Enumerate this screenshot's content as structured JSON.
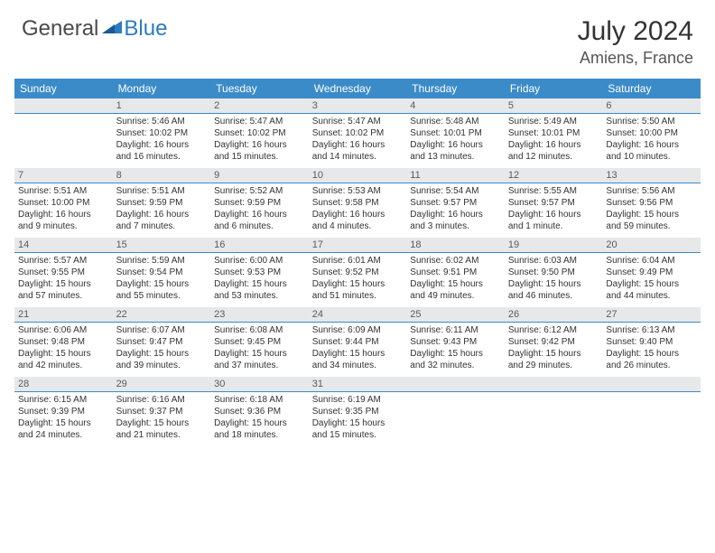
{
  "logo": {
    "general": "General",
    "blue": "Blue"
  },
  "title": "July 2024",
  "location": "Amiens, France",
  "colors": {
    "header_bg": "#3b8bc9",
    "header_text": "#ffffff",
    "date_bar_bg": "#e7e8e9",
    "date_bar_border": "#3b8bc9",
    "body_text": "#333333",
    "logo_general": "#4a4a4a",
    "logo_blue": "#2d7bc0"
  },
  "daysOfWeek": [
    "Sunday",
    "Monday",
    "Tuesday",
    "Wednesday",
    "Thursday",
    "Friday",
    "Saturday"
  ],
  "weeks": [
    {
      "dates": [
        "",
        "1",
        "2",
        "3",
        "4",
        "5",
        "6"
      ],
      "cells": [
        null,
        {
          "sunrise": "Sunrise: 5:46 AM",
          "sunset": "Sunset: 10:02 PM",
          "d1": "Daylight: 16 hours",
          "d2": "and 16 minutes."
        },
        {
          "sunrise": "Sunrise: 5:47 AM",
          "sunset": "Sunset: 10:02 PM",
          "d1": "Daylight: 16 hours",
          "d2": "and 15 minutes."
        },
        {
          "sunrise": "Sunrise: 5:47 AM",
          "sunset": "Sunset: 10:02 PM",
          "d1": "Daylight: 16 hours",
          "d2": "and 14 minutes."
        },
        {
          "sunrise": "Sunrise: 5:48 AM",
          "sunset": "Sunset: 10:01 PM",
          "d1": "Daylight: 16 hours",
          "d2": "and 13 minutes."
        },
        {
          "sunrise": "Sunrise: 5:49 AM",
          "sunset": "Sunset: 10:01 PM",
          "d1": "Daylight: 16 hours",
          "d2": "and 12 minutes."
        },
        {
          "sunrise": "Sunrise: 5:50 AM",
          "sunset": "Sunset: 10:00 PM",
          "d1": "Daylight: 16 hours",
          "d2": "and 10 minutes."
        }
      ]
    },
    {
      "dates": [
        "7",
        "8",
        "9",
        "10",
        "11",
        "12",
        "13"
      ],
      "cells": [
        {
          "sunrise": "Sunrise: 5:51 AM",
          "sunset": "Sunset: 10:00 PM",
          "d1": "Daylight: 16 hours",
          "d2": "and 9 minutes."
        },
        {
          "sunrise": "Sunrise: 5:51 AM",
          "sunset": "Sunset: 9:59 PM",
          "d1": "Daylight: 16 hours",
          "d2": "and 7 minutes."
        },
        {
          "sunrise": "Sunrise: 5:52 AM",
          "sunset": "Sunset: 9:59 PM",
          "d1": "Daylight: 16 hours",
          "d2": "and 6 minutes."
        },
        {
          "sunrise": "Sunrise: 5:53 AM",
          "sunset": "Sunset: 9:58 PM",
          "d1": "Daylight: 16 hours",
          "d2": "and 4 minutes."
        },
        {
          "sunrise": "Sunrise: 5:54 AM",
          "sunset": "Sunset: 9:57 PM",
          "d1": "Daylight: 16 hours",
          "d2": "and 3 minutes."
        },
        {
          "sunrise": "Sunrise: 5:55 AM",
          "sunset": "Sunset: 9:57 PM",
          "d1": "Daylight: 16 hours",
          "d2": "and 1 minute."
        },
        {
          "sunrise": "Sunrise: 5:56 AM",
          "sunset": "Sunset: 9:56 PM",
          "d1": "Daylight: 15 hours",
          "d2": "and 59 minutes."
        }
      ]
    },
    {
      "dates": [
        "14",
        "15",
        "16",
        "17",
        "18",
        "19",
        "20"
      ],
      "cells": [
        {
          "sunrise": "Sunrise: 5:57 AM",
          "sunset": "Sunset: 9:55 PM",
          "d1": "Daylight: 15 hours",
          "d2": "and 57 minutes."
        },
        {
          "sunrise": "Sunrise: 5:59 AM",
          "sunset": "Sunset: 9:54 PM",
          "d1": "Daylight: 15 hours",
          "d2": "and 55 minutes."
        },
        {
          "sunrise": "Sunrise: 6:00 AM",
          "sunset": "Sunset: 9:53 PM",
          "d1": "Daylight: 15 hours",
          "d2": "and 53 minutes."
        },
        {
          "sunrise": "Sunrise: 6:01 AM",
          "sunset": "Sunset: 9:52 PM",
          "d1": "Daylight: 15 hours",
          "d2": "and 51 minutes."
        },
        {
          "sunrise": "Sunrise: 6:02 AM",
          "sunset": "Sunset: 9:51 PM",
          "d1": "Daylight: 15 hours",
          "d2": "and 49 minutes."
        },
        {
          "sunrise": "Sunrise: 6:03 AM",
          "sunset": "Sunset: 9:50 PM",
          "d1": "Daylight: 15 hours",
          "d2": "and 46 minutes."
        },
        {
          "sunrise": "Sunrise: 6:04 AM",
          "sunset": "Sunset: 9:49 PM",
          "d1": "Daylight: 15 hours",
          "d2": "and 44 minutes."
        }
      ]
    },
    {
      "dates": [
        "21",
        "22",
        "23",
        "24",
        "25",
        "26",
        "27"
      ],
      "cells": [
        {
          "sunrise": "Sunrise: 6:06 AM",
          "sunset": "Sunset: 9:48 PM",
          "d1": "Daylight: 15 hours",
          "d2": "and 42 minutes."
        },
        {
          "sunrise": "Sunrise: 6:07 AM",
          "sunset": "Sunset: 9:47 PM",
          "d1": "Daylight: 15 hours",
          "d2": "and 39 minutes."
        },
        {
          "sunrise": "Sunrise: 6:08 AM",
          "sunset": "Sunset: 9:45 PM",
          "d1": "Daylight: 15 hours",
          "d2": "and 37 minutes."
        },
        {
          "sunrise": "Sunrise: 6:09 AM",
          "sunset": "Sunset: 9:44 PM",
          "d1": "Daylight: 15 hours",
          "d2": "and 34 minutes."
        },
        {
          "sunrise": "Sunrise: 6:11 AM",
          "sunset": "Sunset: 9:43 PM",
          "d1": "Daylight: 15 hours",
          "d2": "and 32 minutes."
        },
        {
          "sunrise": "Sunrise: 6:12 AM",
          "sunset": "Sunset: 9:42 PM",
          "d1": "Daylight: 15 hours",
          "d2": "and 29 minutes."
        },
        {
          "sunrise": "Sunrise: 6:13 AM",
          "sunset": "Sunset: 9:40 PM",
          "d1": "Daylight: 15 hours",
          "d2": "and 26 minutes."
        }
      ]
    },
    {
      "dates": [
        "28",
        "29",
        "30",
        "31",
        "",
        "",
        ""
      ],
      "cells": [
        {
          "sunrise": "Sunrise: 6:15 AM",
          "sunset": "Sunset: 9:39 PM",
          "d1": "Daylight: 15 hours",
          "d2": "and 24 minutes."
        },
        {
          "sunrise": "Sunrise: 6:16 AM",
          "sunset": "Sunset: 9:37 PM",
          "d1": "Daylight: 15 hours",
          "d2": "and 21 minutes."
        },
        {
          "sunrise": "Sunrise: 6:18 AM",
          "sunset": "Sunset: 9:36 PM",
          "d1": "Daylight: 15 hours",
          "d2": "and 18 minutes."
        },
        {
          "sunrise": "Sunrise: 6:19 AM",
          "sunset": "Sunset: 9:35 PM",
          "d1": "Daylight: 15 hours",
          "d2": "and 15 minutes."
        },
        null,
        null,
        null
      ]
    }
  ]
}
